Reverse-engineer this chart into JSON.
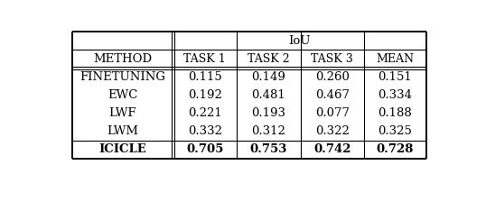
{
  "title": "IoU",
  "col_header_method": "Method",
  "col_header_tasks": [
    "task 1",
    "task 2",
    "task 3",
    "mean"
  ],
  "rows": [
    [
      "Finetuning",
      "0.115",
      "0.149",
      "0.260",
      "0.151"
    ],
    [
      "EWC",
      "0.192",
      "0.481",
      "0.467",
      "0.334"
    ],
    [
      "LWF",
      "0.221",
      "0.193",
      "0.077",
      "0.188"
    ],
    [
      "LWM",
      "0.332",
      "0.312",
      "0.322",
      "0.325"
    ],
    [
      "ICICLE",
      "0.705",
      "0.753",
      "0.742",
      "0.728"
    ]
  ],
  "bold_rows": [
    4
  ],
  "bg_color": "#ffffff",
  "line_color": "#000000",
  "font_size": 9.5,
  "header_font_size": 9.5
}
